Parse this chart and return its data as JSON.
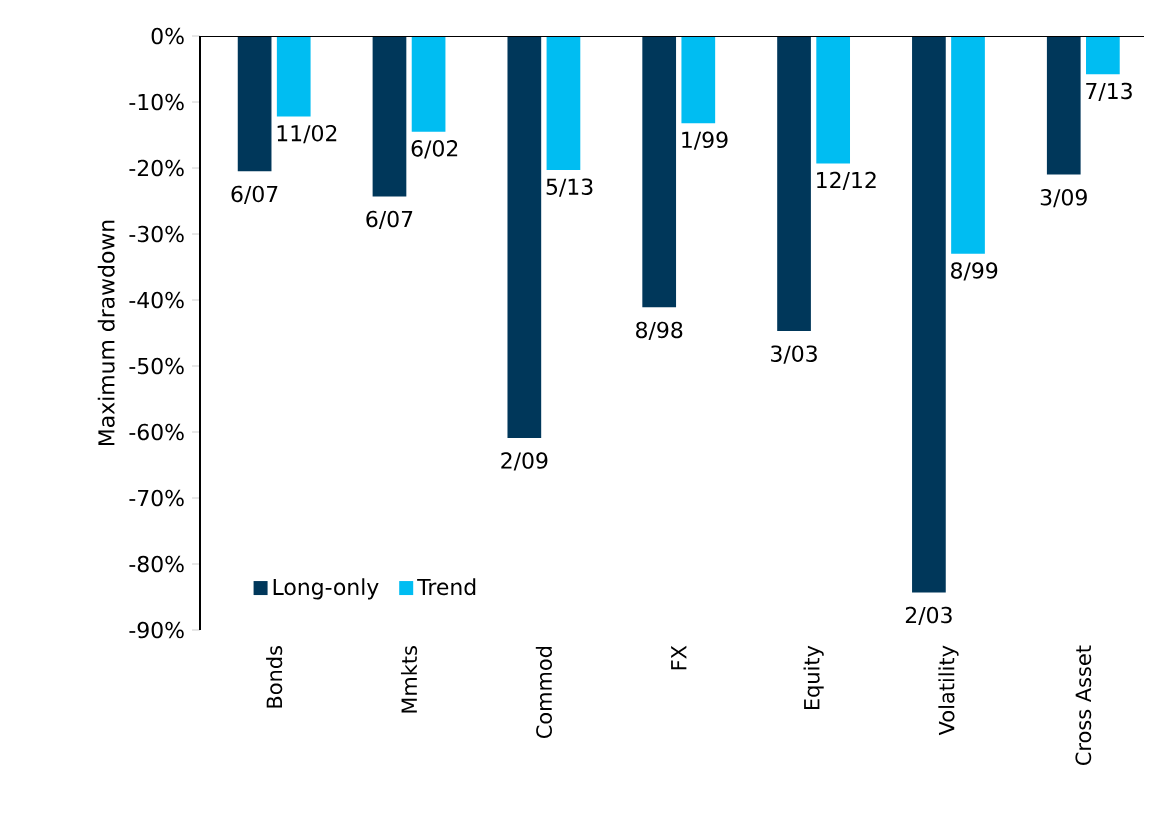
{
  "chart_data": {
    "type": "bar",
    "ylabel": "Maximum drawdown",
    "categories": [
      "Bonds",
      "Mmkts",
      "Commod",
      "FX",
      "Equity",
      "Volatility",
      "Cross Asset"
    ],
    "series": [
      {
        "name": "Long-only",
        "color": "#00375a",
        "values": [
          -20.5,
          -24.3,
          -60.9,
          -41.1,
          -44.7,
          -84.3,
          -21.0
        ]
      },
      {
        "name": "Trend",
        "color": "#00bdf2",
        "values": [
          -12.2,
          -14.5,
          -20.3,
          -13.2,
          -19.3,
          -33.0,
          -5.8
        ]
      }
    ],
    "ylim": [
      -90,
      0
    ],
    "yticks": [
      {
        "value": 0,
        "label": "0%"
      },
      {
        "value": -10,
        "label": "-10%"
      },
      {
        "value": -20,
        "label": "-20%"
      },
      {
        "value": -30,
        "label": "-30%"
      },
      {
        "value": -40,
        "label": "-40%"
      },
      {
        "value": -50,
        "label": "-50%"
      },
      {
        "value": -60,
        "label": "-60%"
      },
      {
        "value": -70,
        "label": "-70%"
      },
      {
        "value": -80,
        "label": "-80%"
      },
      {
        "value": -90,
        "label": "-90%"
      }
    ],
    "legend": "bottom left",
    "annotations": [
      {
        "text": "6/07",
        "x": "Bonds",
        "y": -20.5
      },
      {
        "text": "11/02",
        "x": "Bonds",
        "y": -12.2
      },
      {
        "text": "6/07",
        "x": "Mmkts",
        "y": -24.3
      },
      {
        "text": "6/02",
        "x": "Mmkts",
        "y": -14.5
      },
      {
        "text": "2/09",
        "x": "Commod",
        "y": -60.9
      },
      {
        "text": "5/13",
        "x": "Commod",
        "y": -20.3
      },
      {
        "text": "8/98",
        "x": "FX",
        "y": -41.1
      },
      {
        "text": "1/99",
        "x": "FX",
        "y": -13.2
      },
      {
        "text": "3/03",
        "x": "Equity",
        "y": -44.7
      },
      {
        "text": "12/12",
        "x": "Equity",
        "y": -19.3
      },
      {
        "text": "2/03",
        "x": "Volatility",
        "y": -84.3
      },
      {
        "text": "8/99",
        "x": "Volatility",
        "y": -33.0
      },
      {
        "text": "3/09",
        "x": "Cross Asset",
        "y": -21.0
      },
      {
        "text": "7/13",
        "x": "Cross Asset",
        "y": -5.8
      }
    ]
  }
}
